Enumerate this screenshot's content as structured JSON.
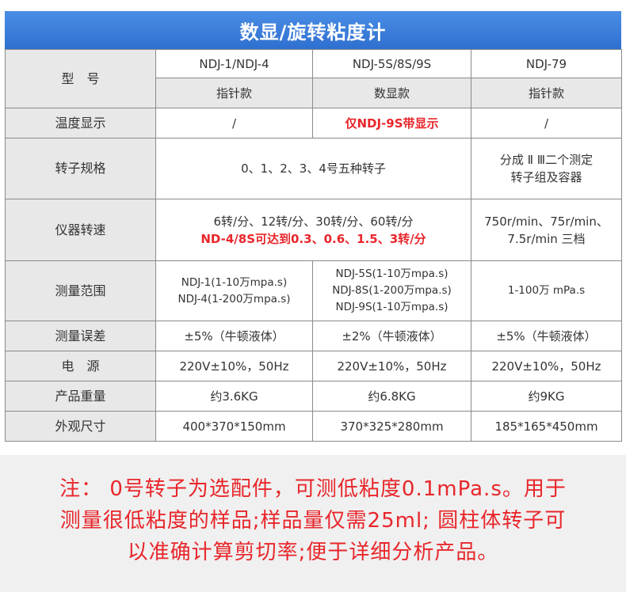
{
  "title": "数显/旋转粘度计",
  "models": {
    "label": "型　号",
    "names": [
      "NDJ-1/NDJ-4",
      "NDJ-5S/8S/9S",
      "NDJ-79"
    ],
    "types": [
      "指针款",
      "数显款",
      "指针款"
    ]
  },
  "rows": {
    "temperature": {
      "label": "温度显示",
      "values": [
        "/",
        "仅NDJ-9S带显示",
        "/"
      ]
    },
    "rotor": {
      "label": "转子规格",
      "shared": "0、1、2、3、4号五种转子",
      "col3": [
        "分成 Ⅱ Ⅲ二个测定",
        "转子组及容器"
      ]
    },
    "speed": {
      "label": "仪器转速",
      "shared": [
        "6转/分、12转/分、30转/分、60转/分",
        "ND-4/8S可达到0.3、0.6、1.5、3转/分"
      ],
      "col3": [
        "750r/min、75r/min、",
        "7.5r/min 三档"
      ]
    },
    "range": {
      "label": "测量范围",
      "col1": [
        "NDJ-1(1-10万mpa.s)",
        "NDJ-4(1-200万mpa.s)"
      ],
      "col2": [
        "NDJ-5S(1-10万mpa.s)",
        "NDJ-8S(1-200万mpa.s)",
        "NDJ-9S(1-10万mpa.s)"
      ],
      "col3": "1-100万 mPa.s"
    },
    "error": {
      "label": "测量误差",
      "values": [
        "±5%（牛顿液体）",
        "±2%（牛顿液体）",
        "±5%（牛顿液体）"
      ]
    },
    "power": {
      "label": "电　源",
      "values": [
        "220V±10%，50Hz",
        "220V±10%，50Hz",
        "220V±10%，50Hz"
      ]
    },
    "weight": {
      "label": "产品重量",
      "values": [
        "约3.6KG",
        "约6.8KG",
        "约9KG"
      ]
    },
    "size": {
      "label": "外观尺寸",
      "values": [
        "400*370*150mm",
        "370*325*280mm",
        "185*165*450mm"
      ]
    }
  },
  "note": [
    "注： 0号转子为选配件，可测低粘度0.1mPa.s。用于",
    "测量很低粘度的样品;样品量仅需25ml; 圆柱体转子可",
    "以准确计算剪切率;便于详细分析产品。"
  ]
}
